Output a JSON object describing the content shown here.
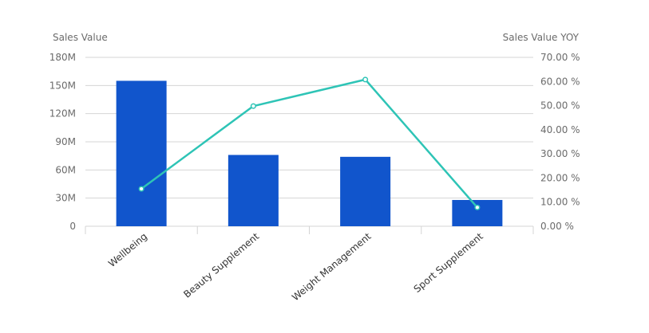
{
  "chart_data": {
    "type": "bar",
    "categories": [
      "Wellbeing",
      "Beauty Supplement",
      "Weight Management",
      "Sport Supplement"
    ],
    "series": [
      {
        "type": "bar",
        "axis": "left",
        "values": [
          155,
          76,
          74,
          28
        ]
      },
      {
        "type": "line",
        "axis": "right",
        "values": [
          15.5,
          49.8,
          60.8,
          7.8
        ]
      }
    ],
    "y_left": {
      "label": "Sales Value",
      "ylim": [
        0,
        180
      ],
      "ticks": [
        0,
        30,
        60,
        90,
        120,
        150,
        180
      ],
      "tick_labels": [
        "0",
        "30M",
        "60M",
        "90M",
        "120M",
        "150M",
        "180M"
      ]
    },
    "y_right": {
      "label": "Sales Value YOY",
      "ylim": [
        0,
        70
      ],
      "ticks": [
        0,
        10,
        20,
        30,
        40,
        50,
        60,
        70
      ],
      "tick_labels": [
        "0.00 %",
        "10.00 %",
        "20.00 %",
        "30.00 %",
        "40.00 %",
        "50.00 %",
        "60.00 %",
        "70.00 %"
      ]
    },
    "grid": true,
    "legend": "none",
    "colors": {
      "bar": "#1155cc",
      "line": "#2ec4b6",
      "grid": "#d4d4d4"
    }
  }
}
